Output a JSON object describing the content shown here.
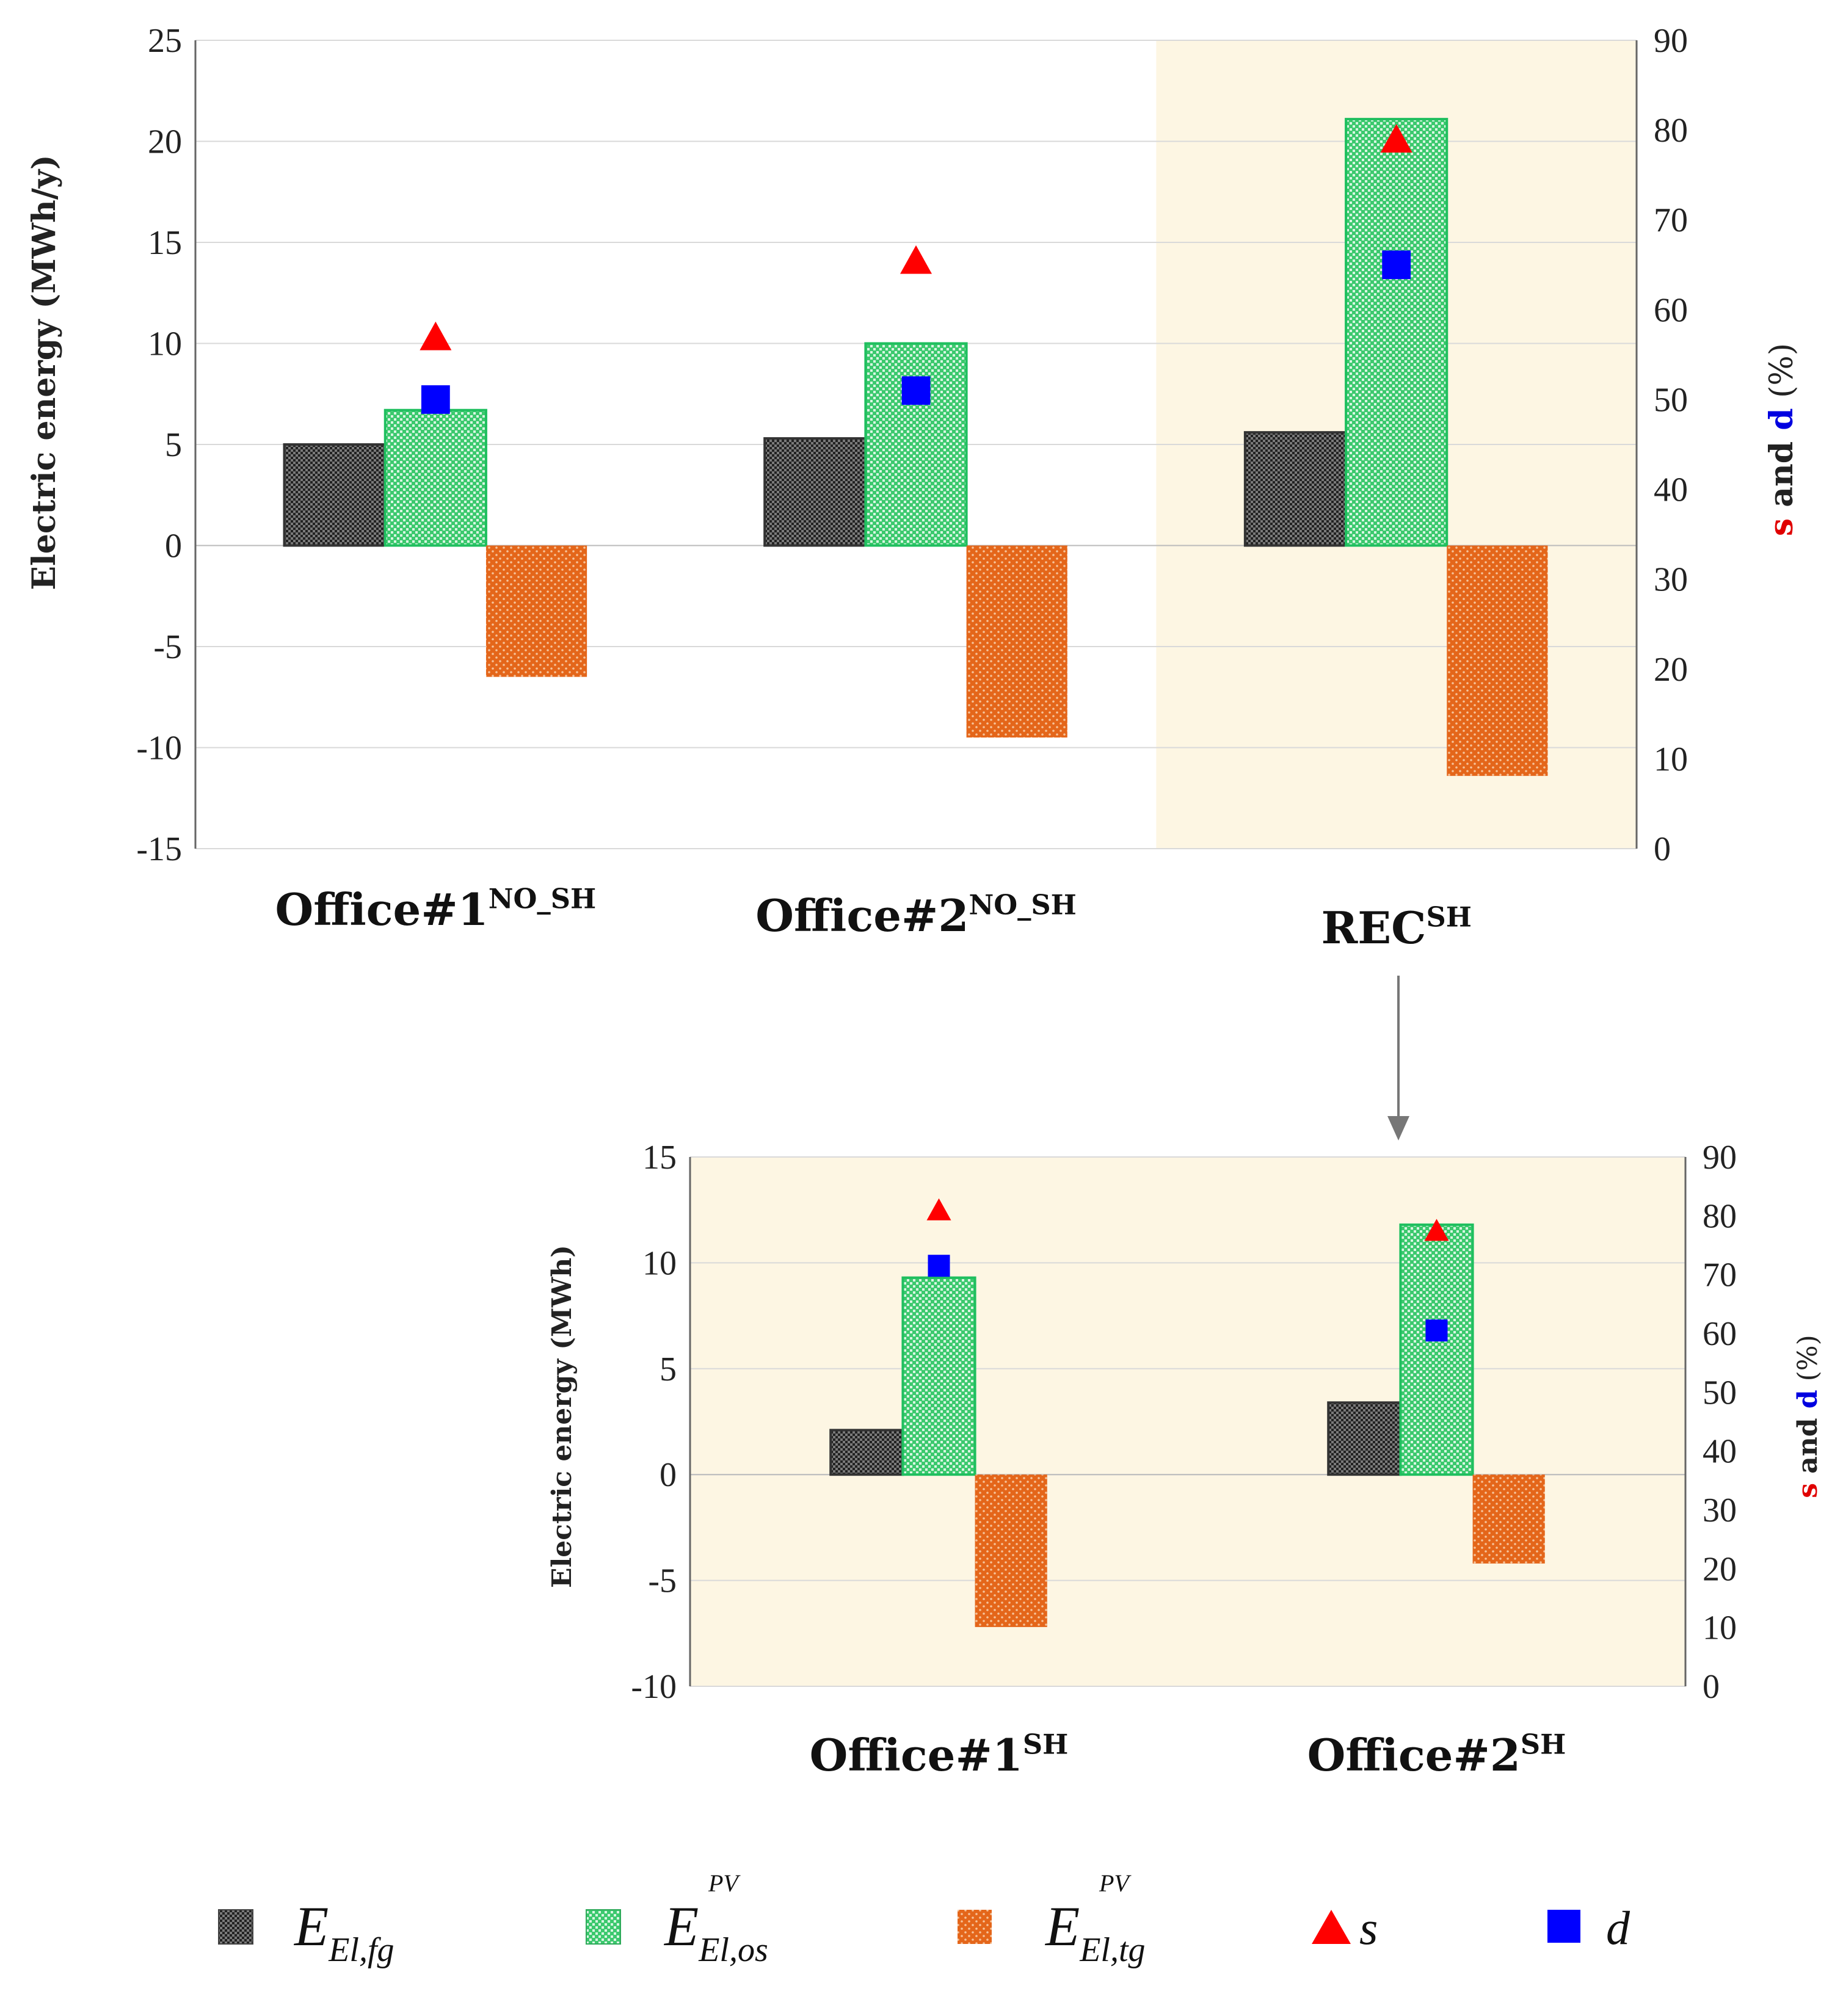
{
  "colors": {
    "black_bar": "#555555",
    "green_bar": "#2ecc71",
    "orange_bar": "#e56a1a",
    "s_marker": "#ff0000",
    "d_marker": "#0000ff",
    "highlight": "#fdf6e3",
    "grid": "#d9d9d9"
  },
  "chart_data": [
    {
      "type": "bar",
      "categories": [
        "Office#1",
        "Office#2",
        "REC"
      ],
      "category_superscripts": [
        "NO_SH",
        "NO_SH",
        "SH"
      ],
      "highlighted_category": "REC",
      "ylabel": "Electric energy (MWh/y)",
      "ylim": [
        -15,
        25
      ],
      "yticks": [
        "25",
        "20",
        "15",
        "10",
        "5",
        "0",
        "-5",
        "-10",
        "-15"
      ],
      "y2label": {
        "s": "s",
        "and": " and ",
        "d": "d",
        "unit": " (%)"
      },
      "y2lim": [
        0,
        90
      ],
      "y2ticks": [
        "90",
        "80",
        "70",
        "60",
        "50",
        "40",
        "30",
        "20",
        "10",
        "0"
      ],
      "series": [
        {
          "name": "E_El,fg",
          "kind": "bar",
          "values": [
            5.0,
            5.3,
            5.6
          ]
        },
        {
          "name": "E_El,os^PV",
          "kind": "bar",
          "values": [
            6.7,
            10.0,
            21.1
          ]
        },
        {
          "name": "E_El,tg^PV",
          "kind": "bar",
          "values": [
            -6.5,
            -9.5,
            -11.4
          ]
        },
        {
          "name": "s",
          "kind": "marker",
          "axis": "right",
          "values": [
            57.0,
            65.5,
            79.0
          ]
        },
        {
          "name": "d",
          "kind": "marker",
          "axis": "right",
          "values": [
            50.0,
            51.0,
            65.0
          ]
        }
      ]
    },
    {
      "type": "bar",
      "categories": [
        "Office#1",
        "Office#2"
      ],
      "category_superscripts": [
        "SH",
        "SH"
      ],
      "ylabel": "Electric energy (MWh)",
      "ylim": [
        -10,
        15
      ],
      "yticks": [
        "15",
        "10",
        "5",
        "0",
        "-5",
        "-10"
      ],
      "y2label": {
        "s": "s",
        "and": " and ",
        "d": "d",
        "unit": " (%)"
      },
      "y2lim": [
        0,
        90
      ],
      "y2ticks": [
        "90",
        "80",
        "70",
        "60",
        "50",
        "40",
        "30",
        "20",
        "10",
        "0"
      ],
      "series": [
        {
          "name": "E_El,fg",
          "kind": "bar",
          "values": [
            2.1,
            3.4
          ]
        },
        {
          "name": "E_El,os^PV",
          "kind": "bar",
          "values": [
            9.3,
            11.8
          ]
        },
        {
          "name": "E_El,tg^PV",
          "kind": "bar",
          "values": [
            -7.2,
            -4.2
          ]
        },
        {
          "name": "s",
          "kind": "marker",
          "axis": "right",
          "values": [
            81.0,
            77.5
          ]
        },
        {
          "name": "d",
          "kind": "marker",
          "axis": "right",
          "values": [
            71.5,
            60.5
          ]
        }
      ]
    }
  ],
  "legend": [
    {
      "symbol": "E",
      "sub": "El,fg",
      "sup": ""
    },
    {
      "symbol": "E",
      "sub": "El,os",
      "sup": "PV"
    },
    {
      "symbol": "E",
      "sub": "El,tg",
      "sup": "PV"
    },
    {
      "symbol": "s",
      "sub": "",
      "sup": ""
    },
    {
      "symbol": "d",
      "sub": "",
      "sup": ""
    }
  ]
}
